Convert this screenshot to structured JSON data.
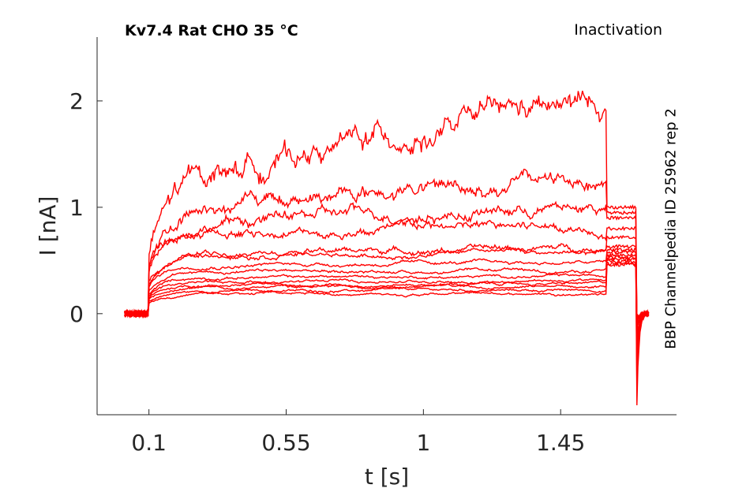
{
  "chart_data": {
    "type": "line",
    "title": "Kv7.4  Rat  CHO  35 °C",
    "subtitle": "Inactivation",
    "side_label": "BBP Channelpedia ID 25962 rep 2",
    "xlabel": "t [s]",
    "ylabel": "I [nA]",
    "xlim": [
      -0.07,
      1.83
    ],
    "ylim": [
      -0.95,
      2.6
    ],
    "xticks": [
      0.1,
      0.55,
      1,
      1.45
    ],
    "xtick_labels": [
      "0.1",
      "0.55",
      "1",
      "1.45"
    ],
    "yticks": [
      0,
      1,
      2
    ],
    "ytick_labels": [
      "0",
      "1",
      "2"
    ],
    "grid": false,
    "line_color": "#ff0000",
    "pulse": {
      "baseline_start": 0.02,
      "step_start": 0.1,
      "step_end": 1.6,
      "tail_end": 1.7,
      "trace_end": 1.74
    },
    "series": [
      {
        "start": 0.18,
        "end": 0.19,
        "tail": 0.46,
        "tail_dip": -0.85,
        "noise": 0.008
      },
      {
        "start": 0.21,
        "end": 0.22,
        "tail": 0.47,
        "tail_dip": -0.7,
        "noise": 0.008
      },
      {
        "start": 0.24,
        "end": 0.25,
        "tail": 0.49,
        "tail_dip": -0.55,
        "noise": 0.008
      },
      {
        "start": 0.27,
        "end": 0.28,
        "tail": 0.51,
        "tail_dip": -0.45,
        "noise": 0.009
      },
      {
        "start": 0.3,
        "end": 0.31,
        "tail": 0.53,
        "tail_dip": -0.35,
        "noise": 0.009
      },
      {
        "start": 0.34,
        "end": 0.35,
        "tail": 0.55,
        "tail_dip": -0.28,
        "noise": 0.009
      },
      {
        "start": 0.39,
        "end": 0.4,
        "tail": 0.58,
        "tail_dip": -0.22,
        "noise": 0.01
      },
      {
        "start": 0.45,
        "end": 0.48,
        "tail": 0.6,
        "tail_dip": -0.18,
        "noise": 0.012
      },
      {
        "start": 0.5,
        "end": 0.57,
        "tail": 0.63,
        "tail_dip": -0.14,
        "noise": 0.015
      },
      {
        "start": 0.55,
        "end": 0.62,
        "tail": 0.72,
        "tail_dip": -0.12,
        "noise": 0.02
      },
      {
        "start": 0.7,
        "end": 0.82,
        "tail": 0.8,
        "tail_dip": -0.1,
        "noise": 0.03
      },
      {
        "start": 0.8,
        "end": 1.0,
        "tail": 0.9,
        "tail_dip": -0.08,
        "noise": 0.04
      },
      {
        "start": 0.85,
        "end": 1.28,
        "tail": 0.95,
        "tail_dip": -0.07,
        "noise": 0.05
      },
      {
        "start": 1.0,
        "end": 1.95,
        "tail": 1.0,
        "tail_dip": -0.06,
        "noise": 0.08
      }
    ]
  }
}
